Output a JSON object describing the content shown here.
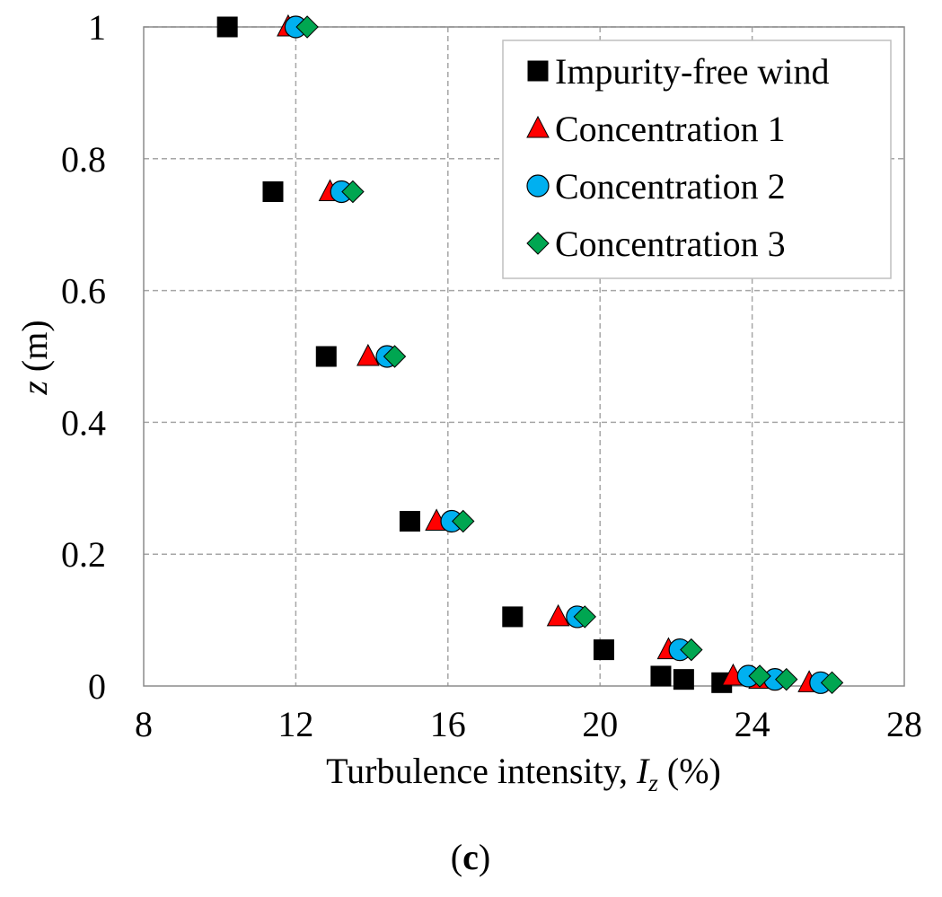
{
  "chart_data": {
    "type": "scatter",
    "title": "",
    "xlabel_prefix": "Turbulence intensity, ",
    "xlabel_symbol": "I",
    "xlabel_subscript": "z",
    "xlabel_suffix": " (%)",
    "ylabel_symbol": "z",
    "ylabel_suffix": " (m)",
    "xlim": [
      8,
      28
    ],
    "ylim": [
      0,
      1
    ],
    "xticks": [
      8,
      12,
      16,
      20,
      24,
      28
    ],
    "yticks": [
      0,
      0.2,
      0.4,
      0.6,
      0.8,
      1
    ],
    "xtick_labels": [
      "8",
      "12",
      "16",
      "20",
      "24",
      "28"
    ],
    "ytick_labels": [
      "0",
      "0.2",
      "0.4",
      "0.6",
      "0.8",
      "1"
    ],
    "grid": true,
    "legend_position": "top-right",
    "caption_open": "(",
    "caption_letter": "c",
    "caption_close": ")",
    "series": [
      {
        "name": "Impurity-free wind",
        "marker": "square",
        "color": "#000000",
        "points": [
          [
            10.2,
            1.0
          ],
          [
            11.4,
            0.75
          ],
          [
            12.8,
            0.5
          ],
          [
            15.0,
            0.25
          ],
          [
            17.7,
            0.105
          ],
          [
            20.1,
            0.055
          ],
          [
            21.6,
            0.015
          ],
          [
            22.2,
            0.01
          ],
          [
            23.2,
            0.005
          ]
        ]
      },
      {
        "name": "Concentration 1",
        "marker": "triangle",
        "color": "#ff0000",
        "points": [
          [
            11.8,
            1.0
          ],
          [
            12.9,
            0.75
          ],
          [
            13.9,
            0.5
          ],
          [
            15.7,
            0.25
          ],
          [
            18.9,
            0.105
          ],
          [
            21.8,
            0.055
          ],
          [
            23.5,
            0.015
          ],
          [
            24.2,
            0.01
          ],
          [
            25.5,
            0.005
          ]
        ]
      },
      {
        "name": "Concentration 2",
        "marker": "circle",
        "color": "#00b0f0",
        "points": [
          [
            12.0,
            1.0
          ],
          [
            13.2,
            0.75
          ],
          [
            14.4,
            0.5
          ],
          [
            16.1,
            0.25
          ],
          [
            19.4,
            0.105
          ],
          [
            22.1,
            0.055
          ],
          [
            23.9,
            0.015
          ],
          [
            24.6,
            0.01
          ],
          [
            25.8,
            0.005
          ]
        ]
      },
      {
        "name": "Concentration 3",
        "marker": "diamond",
        "color": "#00a651",
        "points": [
          [
            12.3,
            1.0
          ],
          [
            13.5,
            0.75
          ],
          [
            14.6,
            0.5
          ],
          [
            16.4,
            0.25
          ],
          [
            19.6,
            0.105
          ],
          [
            22.4,
            0.055
          ],
          [
            24.2,
            0.015
          ],
          [
            24.9,
            0.01
          ],
          [
            26.1,
            0.005
          ]
        ]
      }
    ]
  }
}
